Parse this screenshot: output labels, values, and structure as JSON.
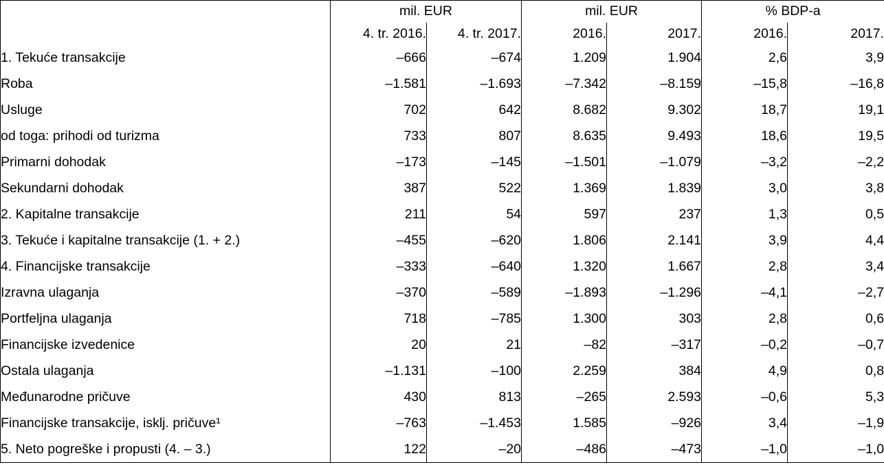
{
  "table": {
    "colors": {
      "text": "#000000",
      "border": "#000000",
      "header_rule": "#808080",
      "background": "#ffffff"
    },
    "header": {
      "corner": "",
      "groups": [
        {
          "label": "mil. EUR"
        },
        {
          "label": "mil. EUR"
        },
        {
          "label": "% BDP-a"
        }
      ],
      "subheaders": [
        "4. tr. 2016.",
        "4. tr. 2017.",
        "2016.",
        "2017.",
        "2016.",
        "2017."
      ]
    },
    "rows": [
      {
        "label": "1. Tekuće transakcije",
        "bold": true,
        "indent": 0,
        "values": [
          "–666",
          "–674",
          "1.209",
          "1.904",
          "2,6",
          "3,9"
        ]
      },
      {
        "label": "Roba",
        "bold": false,
        "indent": 1,
        "values": [
          "–1.581",
          "–1.693",
          "–7.342",
          "–8.159",
          "–15,8",
          "–16,8"
        ]
      },
      {
        "label": "Usluge",
        "bold": false,
        "indent": 1,
        "values": [
          "702",
          "642",
          "8.682",
          "9.302",
          "18,7",
          "19,1"
        ]
      },
      {
        "label": "od toga: prihodi od turizma",
        "bold": false,
        "indent": 2,
        "values": [
          "733",
          "807",
          "8.635",
          "9.493",
          "18,6",
          "19,5"
        ]
      },
      {
        "label": "Primarni dohodak",
        "bold": false,
        "indent": 1,
        "values": [
          "–173",
          "–145",
          "–1.501",
          "–1.079",
          "–3,2",
          "–2,2"
        ]
      },
      {
        "label": "Sekundarni dohodak",
        "bold": false,
        "indent": 1,
        "values": [
          "387",
          "522",
          "1.369",
          "1.839",
          "3,0",
          "3,8"
        ]
      },
      {
        "label": "2. Kapitalne transakcije",
        "bold": true,
        "indent": 0,
        "values": [
          "211",
          "54",
          "597",
          "237",
          "1,3",
          "0,5"
        ]
      },
      {
        "label": "3. Tekuće i kapitalne transakcije (1. + 2.)",
        "bold": true,
        "indent": 0,
        "values": [
          "–455",
          "–620",
          "1.806",
          "2.141",
          "3,9",
          "4,4"
        ]
      },
      {
        "label": "4. Financijske transakcije",
        "bold": true,
        "indent": 0,
        "values": [
          "–333",
          "–640",
          "1.320",
          "1.667",
          "2,8",
          "3,4"
        ]
      },
      {
        "label": "Izravna ulaganja",
        "bold": false,
        "indent": 1,
        "values": [
          "–370",
          "–589",
          "–1.893",
          "–1.296",
          "–4,1",
          "–2,7"
        ]
      },
      {
        "label": "Portfeljna ulaganja",
        "bold": false,
        "indent": 1,
        "values": [
          "718",
          "–785",
          "1.300",
          "303",
          "2,8",
          "0,6"
        ]
      },
      {
        "label": "Financijske izvedenice",
        "bold": false,
        "indent": 1,
        "values": [
          "20",
          "21",
          "–82",
          "–317",
          "–0,2",
          "–0,7"
        ]
      },
      {
        "label": "Ostala ulaganja",
        "bold": false,
        "indent": 1,
        "values": [
          "–1.131",
          "–100",
          "2.259",
          "384",
          "4,9",
          "0,8"
        ]
      },
      {
        "label": "Međunarodne pričuve",
        "bold": false,
        "indent": 1,
        "values": [
          "430",
          "813",
          "–265",
          "2.593",
          "–0,6",
          "5,3"
        ]
      },
      {
        "label": "Financijske transakcije, isklj. pričuve¹",
        "bold": false,
        "indent": 3,
        "values": [
          "–763",
          "–1.453",
          "1.585",
          "–926",
          "3,4",
          "–1,9"
        ]
      },
      {
        "label": "5. Neto pogreške i propusti (4. – 3.)",
        "bold": true,
        "indent": 0,
        "values": [
          "122",
          "–20",
          "–486",
          "–473",
          "–1,0",
          "–1,0"
        ]
      }
    ]
  }
}
